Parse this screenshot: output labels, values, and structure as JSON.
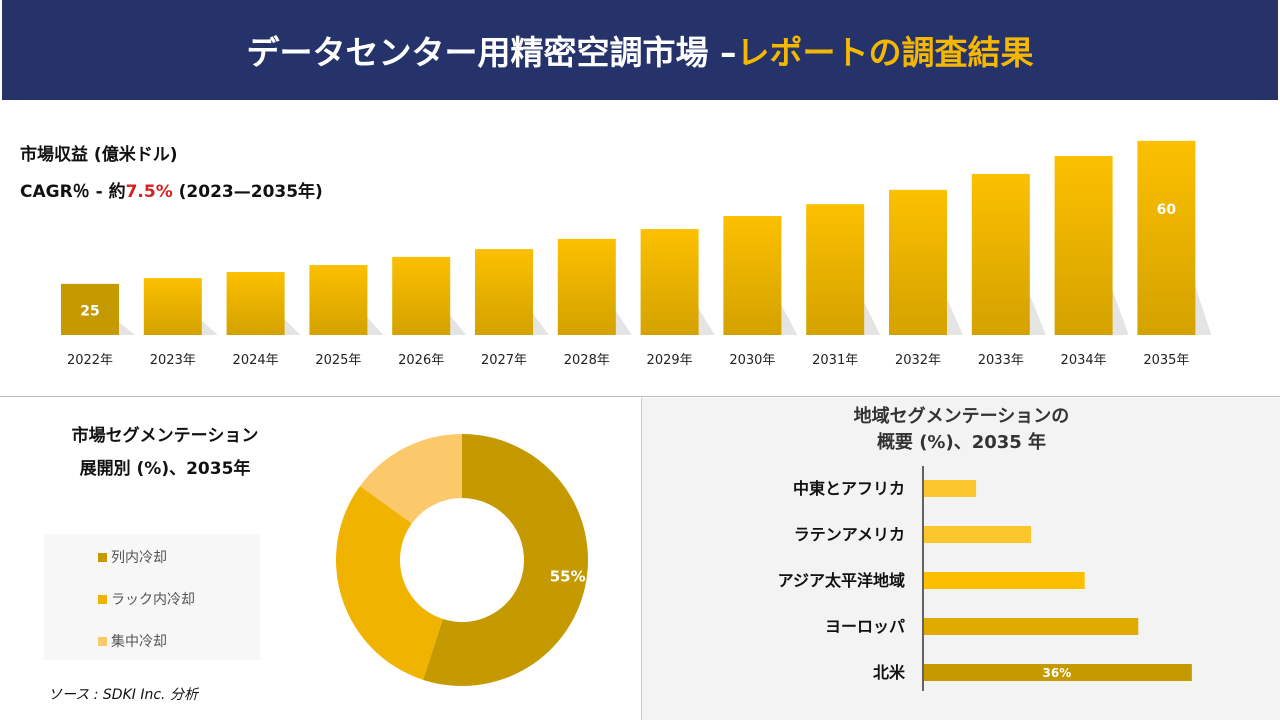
{
  "header": {
    "title_main": "データセンター用精密空調市場 –",
    "title_accent": "レポートの調査結果"
  },
  "revenue": {
    "title": "市場収益 (億米ドル)",
    "cagr_prefix": "CAGR％ - 約",
    "cagr_value": "7.5%",
    "cagr_suffix": " (2023—2035年)"
  },
  "colors": {
    "header_bg": "#26336b",
    "accent": "#f5b800",
    "cagr_red": "#d42020",
    "gold_dark": "#c49a00",
    "gold": "#f0b400",
    "gold_light": "#fcc96a"
  },
  "segment": {
    "title_line1": "市場セグメンテーション",
    "title_line2": "展開別 (%)、2035年"
  },
  "regional": {
    "title_line1": "地域セグメンテーションの",
    "title_line2": "概要 (%)、2035 年"
  },
  "source": "ソース : SDKI Inc. 分析",
  "chart_data": [
    {
      "type": "bar",
      "categories": [
        "2022年",
        "2023年",
        "2024年",
        "2025年",
        "2026年",
        "2027年",
        "2028年",
        "2029年",
        "2030年",
        "2031年",
        "2032年",
        "2033年",
        "2034年",
        "2035年"
      ],
      "values": [
        25,
        26.4,
        27.9,
        29.6,
        31.6,
        33.5,
        36,
        38.4,
        41.6,
        44.5,
        48,
        51.9,
        56.3,
        60
      ],
      "data_labels": {
        "0": "25",
        "13": "60"
      },
      "ylabel": "",
      "grid": false
    },
    {
      "type": "pie",
      "donut": true,
      "categories": [
        "列内冷却",
        "ラック内冷却",
        "集中冷却"
      ],
      "values": [
        55,
        30,
        15
      ],
      "colors": [
        "#c49a00",
        "#f0b400",
        "#fcc96a"
      ],
      "data_labels": {
        "0": "55%"
      },
      "legend": "left"
    },
    {
      "type": "bar",
      "orientation": "horizontal",
      "categories": [
        "中東とアフリカ",
        "ラテンアメリカ",
        "アジア太平洋地域",
        "ヨーロッパ",
        "北米"
      ],
      "values": [
        7,
        14.4,
        21.6,
        28.8,
        36
      ],
      "colors": [
        "#fcc72c",
        "#fcc72c",
        "#fcbf00",
        "#e0aa00",
        "#c49a00"
      ],
      "data_labels": {
        "4": "36%"
      }
    }
  ]
}
